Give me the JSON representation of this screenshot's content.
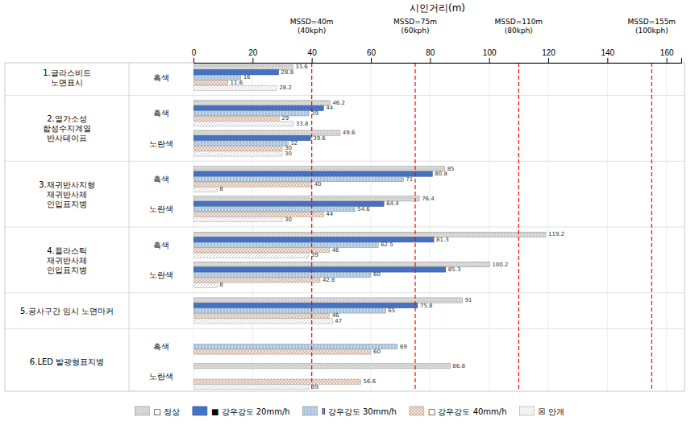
{
  "chart_data": {
    "type": "bar",
    "orientation": "horizontal",
    "x_label": "시인거리(m)",
    "xlim": [
      0,
      165
    ],
    "xticks": [
      0,
      20,
      40,
      60,
      80,
      100,
      120,
      140,
      160
    ],
    "grid": true,
    "data_labels": true,
    "legend": "bottom",
    "categories": [
      "흑색",
      "흑색",
      "노란색",
      "흑색",
      "노란색",
      "흑색",
      "노란색",
      null,
      "흑색",
      "노란색"
    ],
    "groups": [
      "1.글라스비드\n노면표시",
      "2.열가소성\n합성수지계열\n반사테이프",
      "2.열가소성\n합성수지계열\n반사테이프",
      "3.재귀반사지형\n재귀반사체\n인입표지병",
      "3.재귀반사지형\n재귀반사체\n인입표지병",
      "4.플라스틱\n재귀반사체\n인입표지병",
      "4.플라스틱\n재귀반사체\n인입표지병",
      "5.공사구간 임시 노면마커",
      "6.LED 발광형표지병",
      "6.LED 발광형표지병"
    ],
    "series": [
      {
        "name": "□ 정상",
        "color": "#d9d9d9",
        "values": [
          33.6,
          46.2,
          49.6,
          85,
          76.4,
          119.2,
          100.2,
          91,
          null,
          86.8
        ]
      },
      {
        "name": "■ 강우강도 20mm/h",
        "color": "#4472c4",
        "values": [
          28.8,
          44,
          39.6,
          80.8,
          64.4,
          81.3,
          85.3,
          75.8,
          null,
          null
        ]
      },
      {
        "name": "Ⅱ 강우강도 30mm/h",
        "color": "#bdd7ee",
        "values": [
          16,
          39,
          32,
          71,
          54.6,
          62.5,
          60,
          65,
          69,
          null
        ]
      },
      {
        "name": "□ 강우강도 40mm/h",
        "color": "#fce4d6",
        "values": [
          11.6,
          29,
          30,
          40,
          44,
          46,
          42.8,
          46,
          60,
          56.6
        ]
      },
      {
        "name": "☒ 안개",
        "color": "#ffffff",
        "values": [
          28.2,
          33.8,
          30,
          8,
          30,
          39,
          8,
          47,
          null,
          39
        ]
      }
    ],
    "annotations": [
      {
        "type": "vline",
        "x": 40,
        "text": "MSSD=40m\n(40kph)",
        "color": "red"
      },
      {
        "type": "vline",
        "x": 75,
        "text": "MSSD=75m\n(60kph)",
        "color": "red"
      },
      {
        "type": "vline",
        "x": 110,
        "text": "MSSD=110m\n(80kph)",
        "color": "red"
      },
      {
        "type": "vline",
        "x": 155,
        "text": "MSSD=155m\n(100kph)",
        "color": "red"
      }
    ]
  }
}
